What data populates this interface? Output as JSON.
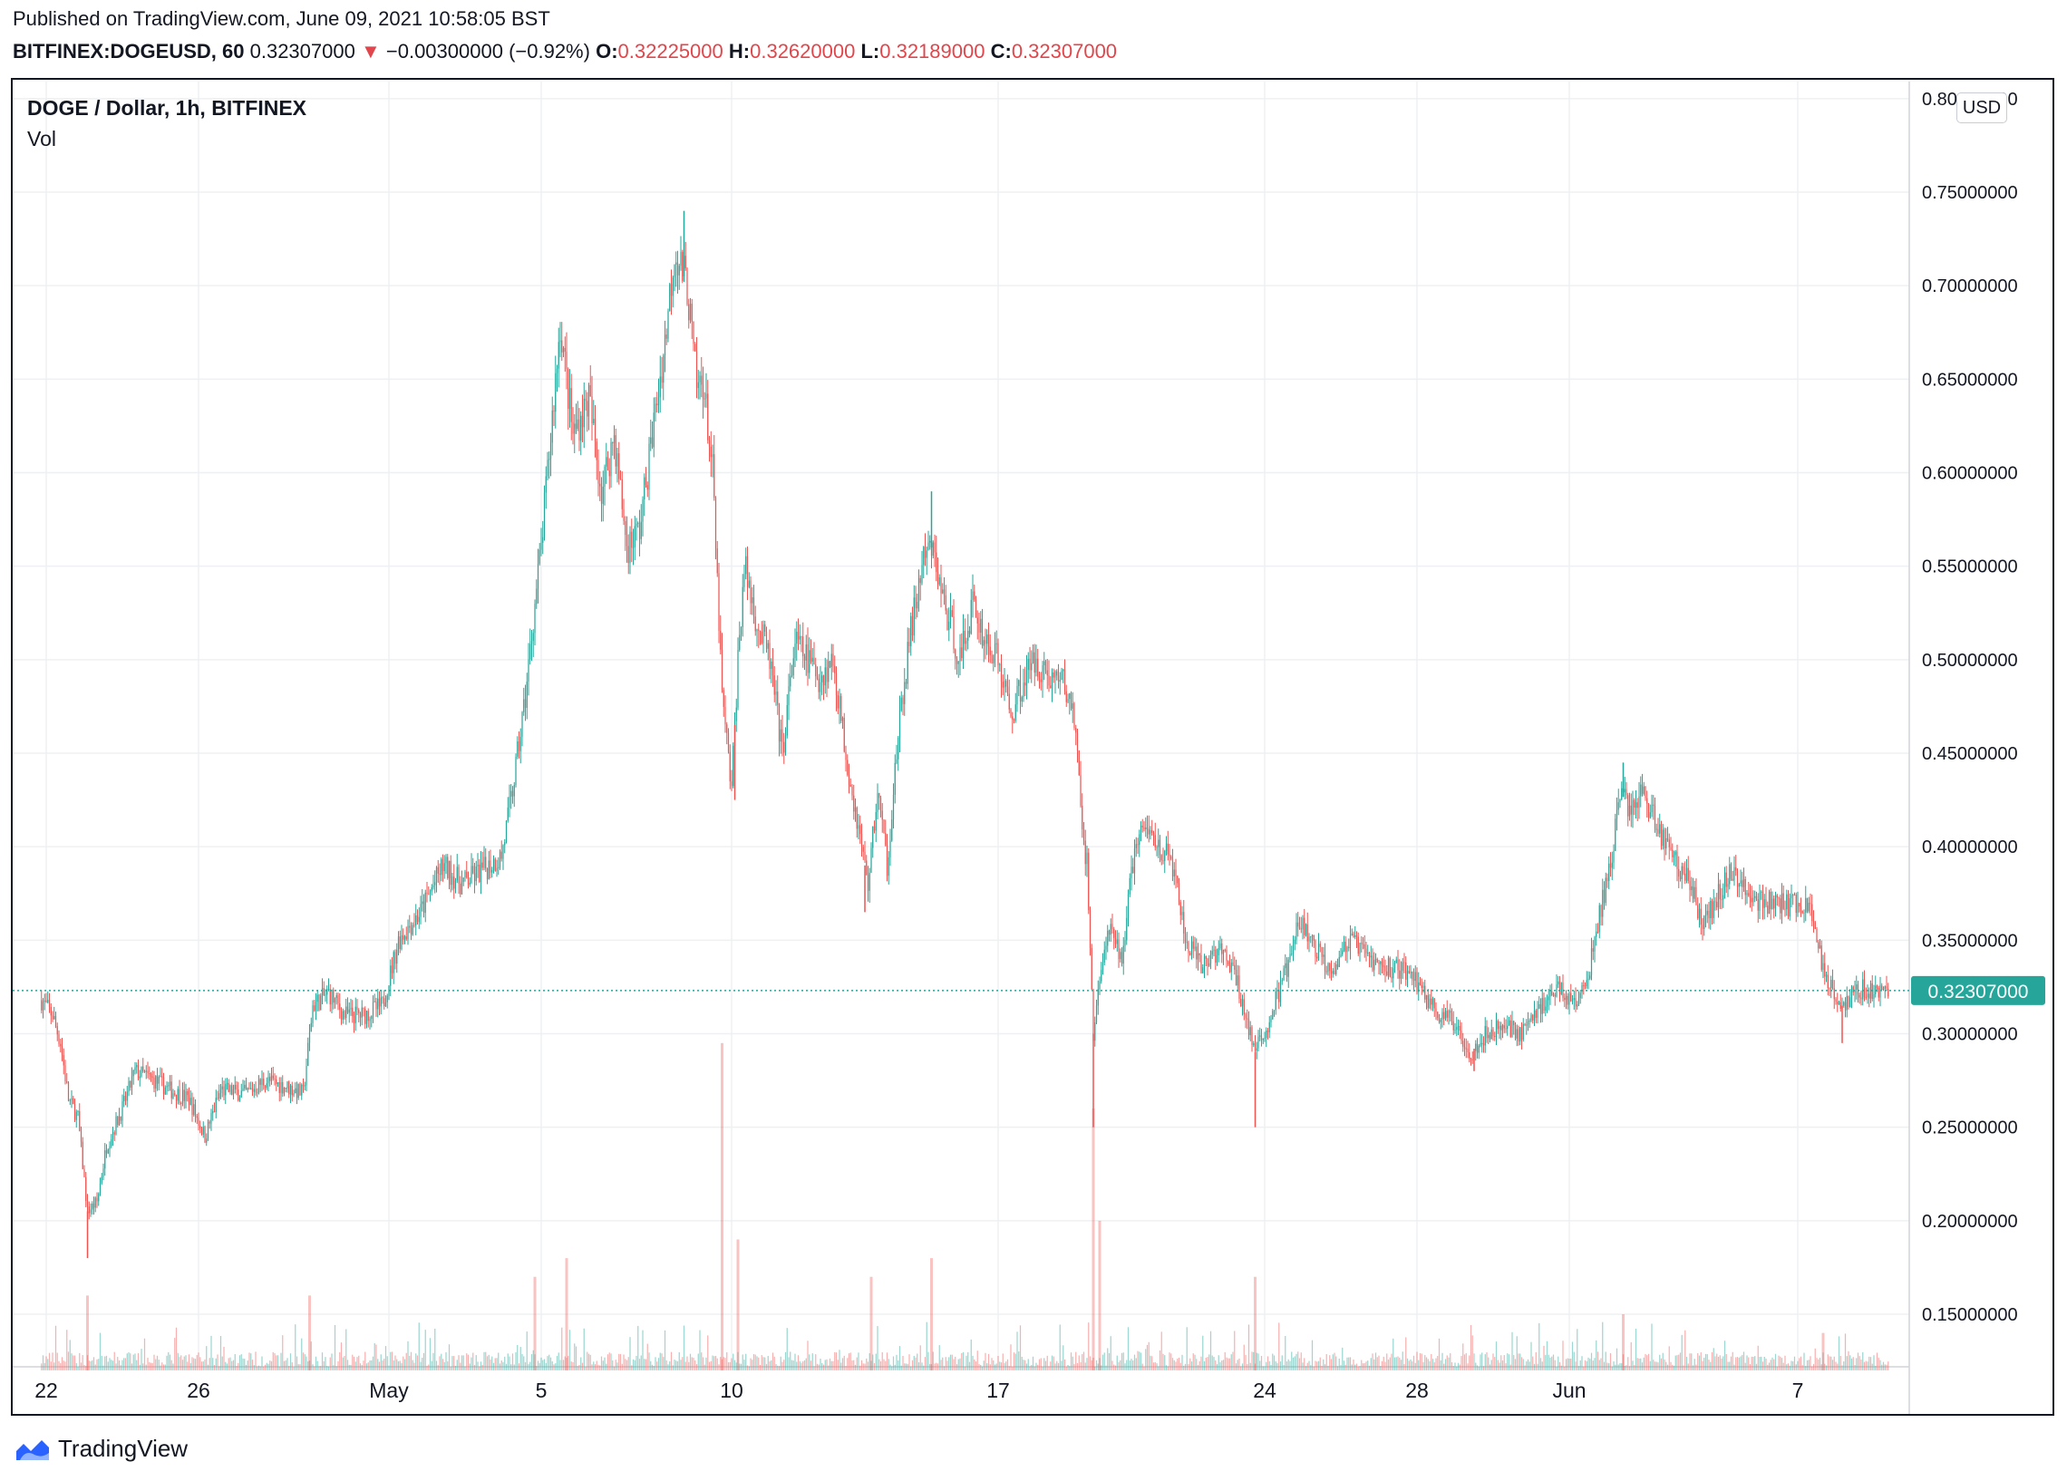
{
  "header": {
    "published": "Published on TradingView.com, June 09, 2021 10:58:05 BST",
    "symbol": "BITFINEX:DOGEUSD, 60",
    "last": "0.32307000",
    "change_arrow": "▼",
    "change": "−0.00300000 (−0.92%)",
    "o_label": "O:",
    "o_value": "0.32225000",
    "h_label": "H:",
    "h_value": "0.32620000",
    "l_label": "L:",
    "l_value": "0.32189000",
    "c_label": "C:",
    "c_value": "0.32307000"
  },
  "legend": {
    "title": "DOGE / Dollar, 1h, BITFINEX",
    "vol": "Vol"
  },
  "currency_badge": "USD",
  "footer": {
    "brand": "TradingView",
    "logo_icon": "tradingview-logo-icon"
  },
  "colors": {
    "up": "#26a69a",
    "down": "#ef5350",
    "last_price_bg": "#26a69a",
    "grid": "#eef0f3"
  },
  "chart_data": {
    "type": "candlestick",
    "title": "DOGE / Dollar, 1h, BITFINEX",
    "ylim": [
      0.12,
      0.8
    ],
    "y_ticks": [
      {
        "value": 0.8,
        "label": "0.80000000"
      },
      {
        "value": 0.75,
        "label": "0.75000000"
      },
      {
        "value": 0.7,
        "label": "0.70000000"
      },
      {
        "value": 0.65,
        "label": "0.65000000"
      },
      {
        "value": 0.6,
        "label": "0.60000000"
      },
      {
        "value": 0.55,
        "label": "0.55000000"
      },
      {
        "value": 0.5,
        "label": "0.50000000"
      },
      {
        "value": 0.45,
        "label": "0.45000000"
      },
      {
        "value": 0.4,
        "label": "0.40000000"
      },
      {
        "value": 0.35,
        "label": "0.35000000"
      },
      {
        "value": 0.3,
        "label": "0.30000000"
      },
      {
        "value": 0.25,
        "label": "0.25000000"
      },
      {
        "value": 0.2,
        "label": "0.20000000"
      },
      {
        "value": 0.15,
        "label": "0.15000000"
      }
    ],
    "x_ticks": [
      {
        "date": "2021-04-22",
        "label": "22"
      },
      {
        "date": "2021-04-26",
        "label": "26"
      },
      {
        "date": "2021-05-01",
        "label": "May"
      },
      {
        "date": "2021-05-05",
        "label": "5"
      },
      {
        "date": "2021-05-10",
        "label": "10"
      },
      {
        "date": "2021-05-17",
        "label": "17"
      },
      {
        "date": "2021-05-24",
        "label": "24"
      },
      {
        "date": "2021-05-28",
        "label": "28"
      },
      {
        "date": "2021-06-01",
        "label": "Jun"
      },
      {
        "date": "2021-06-07",
        "label": "7"
      }
    ],
    "last_price": {
      "value": 0.32307,
      "label": "0.32307000"
    },
    "path": [
      [
        "2021-04-21 21:00",
        0.318
      ],
      [
        "2021-04-22 04:00",
        0.31
      ],
      [
        "2021-04-22 09:00",
        0.295
      ],
      [
        "2021-04-22 14:00",
        0.265
      ],
      [
        "2021-04-22 20:00",
        0.255
      ],
      [
        "2021-04-23 02:00",
        0.205
      ],
      [
        "2021-04-23 08:00",
        0.21
      ],
      [
        "2021-04-23 14:00",
        0.24
      ],
      [
        "2021-04-24 00:00",
        0.26
      ],
      [
        "2021-04-24 08:00",
        0.28
      ],
      [
        "2021-04-24 18:00",
        0.276
      ],
      [
        "2021-04-25 06:00",
        0.27
      ],
      [
        "2021-04-25 18:00",
        0.265
      ],
      [
        "2021-04-26 04:00",
        0.245
      ],
      [
        "2021-04-26 14:00",
        0.27
      ],
      [
        "2021-04-27 06:00",
        0.268
      ],
      [
        "2021-04-27 18:00",
        0.275
      ],
      [
        "2021-04-28 06:00",
        0.272
      ],
      [
        "2021-04-28 18:00",
        0.268
      ],
      [
        "2021-04-29 00:00",
        0.315
      ],
      [
        "2021-04-29 10:00",
        0.322
      ],
      [
        "2021-04-29 20:00",
        0.31
      ],
      [
        "2021-04-30 08:00",
        0.31
      ],
      [
        "2021-04-30 20:00",
        0.315
      ],
      [
        "2021-05-01 06:00",
        0.35
      ],
      [
        "2021-05-01 20:00",
        0.365
      ],
      [
        "2021-05-02 10:00",
        0.39
      ],
      [
        "2021-05-02 22:00",
        0.38
      ],
      [
        "2021-05-03 12:00",
        0.388
      ],
      [
        "2021-05-03 23:00",
        0.395
      ],
      [
        "2021-05-04 06:00",
        0.43
      ],
      [
        "2021-05-04 14:00",
        0.48
      ],
      [
        "2021-05-04 20:00",
        0.53
      ],
      [
        "2021-05-05 00:00",
        0.56
      ],
      [
        "2021-05-05 06:00",
        0.62
      ],
      [
        "2021-05-05 12:00",
        0.68
      ],
      [
        "2021-05-05 20:00",
        0.62
      ],
      [
        "2021-05-06 06:00",
        0.64
      ],
      [
        "2021-05-06 14:00",
        0.59
      ],
      [
        "2021-05-06 22:00",
        0.62
      ],
      [
        "2021-05-07 06:00",
        0.56
      ],
      [
        "2021-05-07 14:00",
        0.57
      ],
      [
        "2021-05-07 22:00",
        0.62
      ],
      [
        "2021-05-08 06:00",
        0.67
      ],
      [
        "2021-05-08 12:00",
        0.72
      ],
      [
        "2021-05-08 20:00",
        0.7
      ],
      [
        "2021-05-09 02:00",
        0.645
      ],
      [
        "2021-05-09 06:00",
        0.65
      ],
      [
        "2021-05-09 12:00",
        0.6
      ],
      [
        "2021-05-09 18:00",
        0.48
      ],
      [
        "2021-05-10 00:00",
        0.43
      ],
      [
        "2021-05-10 04:00",
        0.5
      ],
      [
        "2021-05-10 08:00",
        0.55
      ],
      [
        "2021-05-10 16:00",
        0.52
      ],
      [
        "2021-05-11 00:00",
        0.5
      ],
      [
        "2021-05-11 08:00",
        0.45
      ],
      [
        "2021-05-11 16:00",
        0.51
      ],
      [
        "2021-05-12 00:00",
        0.5
      ],
      [
        "2021-05-12 08:00",
        0.49
      ],
      [
        "2021-05-12 16:00",
        0.5
      ],
      [
        "2021-05-13 00:00",
        0.45
      ],
      [
        "2021-05-13 08:00",
        0.41
      ],
      [
        "2021-05-13 14:00",
        0.38
      ],
      [
        "2021-05-13 20:00",
        0.43
      ],
      [
        "2021-05-14 02:00",
        0.39
      ],
      [
        "2021-05-14 08:00",
        0.45
      ],
      [
        "2021-05-14 16:00",
        0.51
      ],
      [
        "2021-05-15 00:00",
        0.55
      ],
      [
        "2021-05-15 06:00",
        0.56
      ],
      [
        "2021-05-15 14:00",
        0.53
      ],
      [
        "2021-05-16 00:00",
        0.5
      ],
      [
        "2021-05-16 08:00",
        0.53
      ],
      [
        "2021-05-16 16:00",
        0.51
      ],
      [
        "2021-05-17 00:00",
        0.5
      ],
      [
        "2021-05-17 08:00",
        0.47
      ],
      [
        "2021-05-17 16:00",
        0.49
      ],
      [
        "2021-05-18 00:00",
        0.5
      ],
      [
        "2021-05-18 08:00",
        0.49
      ],
      [
        "2021-05-18 16:00",
        0.49
      ],
      [
        "2021-05-19 00:00",
        0.47
      ],
      [
        "2021-05-19 04:00",
        0.42
      ],
      [
        "2021-05-19 08:00",
        0.39
      ],
      [
        "2021-05-19 12:00",
        0.3
      ],
      [
        "2021-05-19 16:00",
        0.33
      ],
      [
        "2021-05-19 22:00",
        0.355
      ],
      [
        "2021-05-20 06:00",
        0.34
      ],
      [
        "2021-05-20 14:00",
        0.4
      ],
      [
        "2021-05-20 22:00",
        0.41
      ],
      [
        "2021-05-21 06:00",
        0.4
      ],
      [
        "2021-05-21 14:00",
        0.39
      ],
      [
        "2021-05-21 22:00",
        0.35
      ],
      [
        "2021-05-22 08:00",
        0.335
      ],
      [
        "2021-05-22 18:00",
        0.345
      ],
      [
        "2021-05-23 04:00",
        0.335
      ],
      [
        "2021-05-23 12:00",
        0.31
      ],
      [
        "2021-05-23 18:00",
        0.29
      ],
      [
        "2021-05-24 00:00",
        0.3
      ],
      [
        "2021-05-24 08:00",
        0.32
      ],
      [
        "2021-05-24 16:00",
        0.34
      ],
      [
        "2021-05-24 22:00",
        0.36
      ],
      [
        "2021-05-25 08:00",
        0.345
      ],
      [
        "2021-05-25 18:00",
        0.335
      ],
      [
        "2021-05-26 06:00",
        0.35
      ],
      [
        "2021-05-26 16:00",
        0.342
      ],
      [
        "2021-05-27 02:00",
        0.335
      ],
      [
        "2021-05-27 14:00",
        0.335
      ],
      [
        "2021-05-27 22:00",
        0.33
      ],
      [
        "2021-05-28 06:00",
        0.32
      ],
      [
        "2021-05-28 14:00",
        0.31
      ],
      [
        "2021-05-29 00:00",
        0.305
      ],
      [
        "2021-05-29 10:00",
        0.29
      ],
      [
        "2021-05-29 20:00",
        0.3
      ],
      [
        "2021-05-30 08:00",
        0.305
      ],
      [
        "2021-05-30 18:00",
        0.3
      ],
      [
        "2021-05-31 06:00",
        0.315
      ],
      [
        "2021-05-31 18:00",
        0.325
      ],
      [
        "2021-06-01 04:00",
        0.315
      ],
      [
        "2021-06-01 12:00",
        0.33
      ],
      [
        "2021-06-01 18:00",
        0.36
      ],
      [
        "2021-06-02 02:00",
        0.39
      ],
      [
        "2021-06-02 08:00",
        0.43
      ],
      [
        "2021-06-02 14:00",
        0.42
      ],
      [
        "2021-06-02 22:00",
        0.43
      ],
      [
        "2021-06-03 08:00",
        0.41
      ],
      [
        "2021-06-03 18:00",
        0.395
      ],
      [
        "2021-06-04 04:00",
        0.38
      ],
      [
        "2021-06-04 12:00",
        0.36
      ],
      [
        "2021-06-04 20:00",
        0.37
      ],
      [
        "2021-06-05 04:00",
        0.385
      ],
      [
        "2021-06-05 14:00",
        0.38
      ],
      [
        "2021-06-06 00:00",
        0.37
      ],
      [
        "2021-06-06 10:00",
        0.37
      ],
      [
        "2021-06-06 20:00",
        0.368
      ],
      [
        "2021-06-07 04:00",
        0.37
      ],
      [
        "2021-06-07 10:00",
        0.36
      ],
      [
        "2021-06-07 16:00",
        0.335
      ],
      [
        "2021-06-07 22:00",
        0.325
      ],
      [
        "2021-06-08 04:00",
        0.315
      ],
      [
        "2021-06-08 10:00",
        0.32
      ],
      [
        "2021-06-08 18:00",
        0.325
      ],
      [
        "2021-06-09 02:00",
        0.322
      ],
      [
        "2021-06-09 09:00",
        0.323
      ]
    ],
    "wicks": [
      [
        "2021-04-23 02:00",
        0.18
      ],
      [
        "2021-05-08 18:00",
        0.74
      ],
      [
        "2021-05-10 02:00",
        0.425
      ],
      [
        "2021-05-13 12:00",
        0.365
      ],
      [
        "2021-05-15 06:00",
        0.59
      ],
      [
        "2021-05-19 12:00",
        0.25
      ],
      [
        "2021-05-23 18:00",
        0.25
      ],
      [
        "2021-05-29 12:00",
        0.28
      ],
      [
        "2021-06-02 10:00",
        0.445
      ],
      [
        "2021-06-08 04:00",
        0.295
      ]
    ],
    "volume": [
      [
        "2021-04-23 02:00",
        0.16
      ],
      [
        "2021-04-28 22:00",
        0.16
      ],
      [
        "2021-05-04 20:00",
        0.17
      ],
      [
        "2021-05-05 16:00",
        0.18
      ],
      [
        "2021-05-09 18:00",
        0.295
      ],
      [
        "2021-05-10 04:00",
        0.19
      ],
      [
        "2021-05-13 16:00",
        0.17
      ],
      [
        "2021-05-15 06:00",
        0.18
      ],
      [
        "2021-05-19 12:00",
        0.26
      ],
      [
        "2021-05-19 16:00",
        0.2
      ],
      [
        "2021-05-23 18:00",
        0.17
      ],
      [
        "2021-06-02 10:00",
        0.15
      ],
      [
        "2021-06-07 16:00",
        0.14
      ]
    ]
  }
}
